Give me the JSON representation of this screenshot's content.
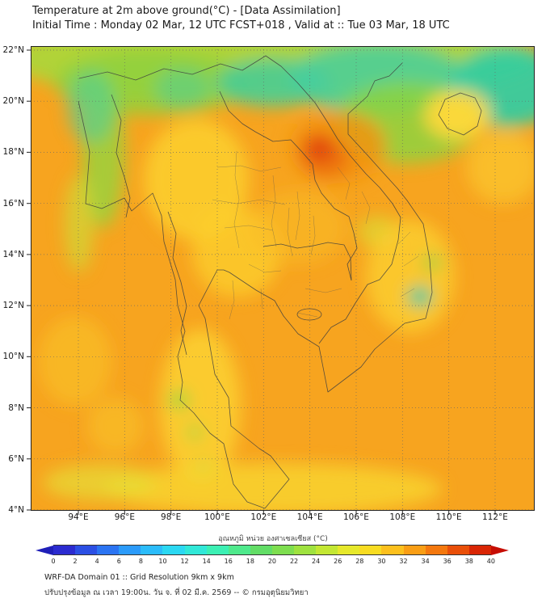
{
  "header": {
    "title": "Temperature at 2m above ground(°C) - [Data Assimilation]",
    "subtitle": "Initial Time : Monday 02 Mar, 12 UTC FCST+018 , Valid at :: Tue 03 Mar, 18 UTC"
  },
  "map": {
    "lat_ticks": [
      "22°N",
      "20°N",
      "18°N",
      "16°N",
      "14°N",
      "12°N",
      "10°N",
      "8°N",
      "6°N",
      "4°N"
    ],
    "lon_ticks": [
      "94°E",
      "96°E",
      "98°E",
      "100°E",
      "102°E",
      "104°E",
      "106°E",
      "108°E",
      "110°E",
      "112°E"
    ]
  },
  "colorbar": {
    "label": "อุณหภูมิ หน่วย องศาเซลเซียส (°C)",
    "ticks": [
      "0",
      "2",
      "4",
      "6",
      "8",
      "10",
      "12",
      "14",
      "16",
      "18",
      "20",
      "22",
      "24",
      "26",
      "28",
      "30",
      "32",
      "34",
      "36",
      "38",
      "40"
    ],
    "segment_colors": [
      "#2b2bd0",
      "#2b4fe4",
      "#2b74f2",
      "#2b9bfa",
      "#2bbcfa",
      "#2bd8f2",
      "#31e8d8",
      "#3cf0b4",
      "#4fe98c",
      "#62dd66",
      "#7ede4f",
      "#9fe23f",
      "#c3e733",
      "#e6e82b",
      "#f8dc22",
      "#fcc01d",
      "#f99e15",
      "#f4780e",
      "#e94f09",
      "#d92605"
    ],
    "under_color": "#1f1fb8",
    "over_color": "#c60d04"
  },
  "footer": {
    "line1": "WRF-DA Domain 01 :: Grid Resolution 9km x 9km",
    "line2": "ปรับปรุงข้อมูล ณ เวลา 19:00น. วัน จ. ที่ 02 มี.ค. 2569 -- © กรมอุตุนิยมวิทยา"
  },
  "chart_data": {
    "type": "heatmap",
    "title": "Temperature at 2m above ground(°C) - [Data Assimilation]",
    "subtitle": "Initial Time : Monday 02 Mar, 12 UTC FCST+018 , Valid at :: Tue 03 Mar, 18 UTC",
    "x_axis": {
      "label": "Longitude",
      "ticks": [
        "94°E",
        "96°E",
        "98°E",
        "100°E",
        "102°E",
        "104°E",
        "106°E",
        "108°E",
        "110°E",
        "112°E"
      ],
      "range_deg_e": [
        92,
        113.5
      ]
    },
    "y_axis": {
      "label": "Latitude",
      "ticks": [
        "22°N",
        "20°N",
        "18°N",
        "16°N",
        "14°N",
        "12°N",
        "10°N",
        "8°N",
        "6°N",
        "4°N"
      ],
      "range_deg_n": [
        4,
        22
      ]
    },
    "colorbar": {
      "label": "อุณหภูมิ หน่วย องศาเซลเซียส (°C)",
      "value_range_c": [
        0,
        40
      ],
      "tick_step_c": 2,
      "style": "rainbow with under/over arrows",
      "position": "bottom"
    },
    "grid": "dotted graticule every 2 degrees",
    "features": [
      {
        "name": "dominant field over land and sea",
        "approx_temp_c": 29
      },
      {
        "name": "cool band across far north (highlands 20-22N)",
        "approx_temp_c": 24
      },
      {
        "name": "cold teal pockets far north and NE Vietnam / top-right corner",
        "approx_temp_c": 21
      },
      {
        "name": "cold teal streak along western Myanmar mountains (~94-95E, 17-21N)",
        "approx_temp_c": 23
      },
      {
        "name": "warm red-orange spot northern Laos",
        "lon_e": 104.2,
        "lat_n": 18.0,
        "approx_temp_c": 34
      },
      {
        "name": "yellow cooler plains north/central Thailand",
        "approx_temp_c": 27
      },
      {
        "name": "yellow band along south-central Vietnam coast interior",
        "approx_temp_c": 27
      },
      {
        "name": "small cool teal coastal spot southern Vietnam",
        "lon_e": 108.6,
        "lat_n": 12.4,
        "approx_temp_c": 24
      },
      {
        "name": "yellow southern peninsula with small green pockets (~8-9N)",
        "approx_temp_c": 26
      },
      {
        "name": "yellow band along bottom edge (4-5N)",
        "approx_temp_c": 27
      },
      {
        "name": "Hainan island warmer than surrounding cool sea",
        "approx_temp_c": 27
      }
    ]
  }
}
